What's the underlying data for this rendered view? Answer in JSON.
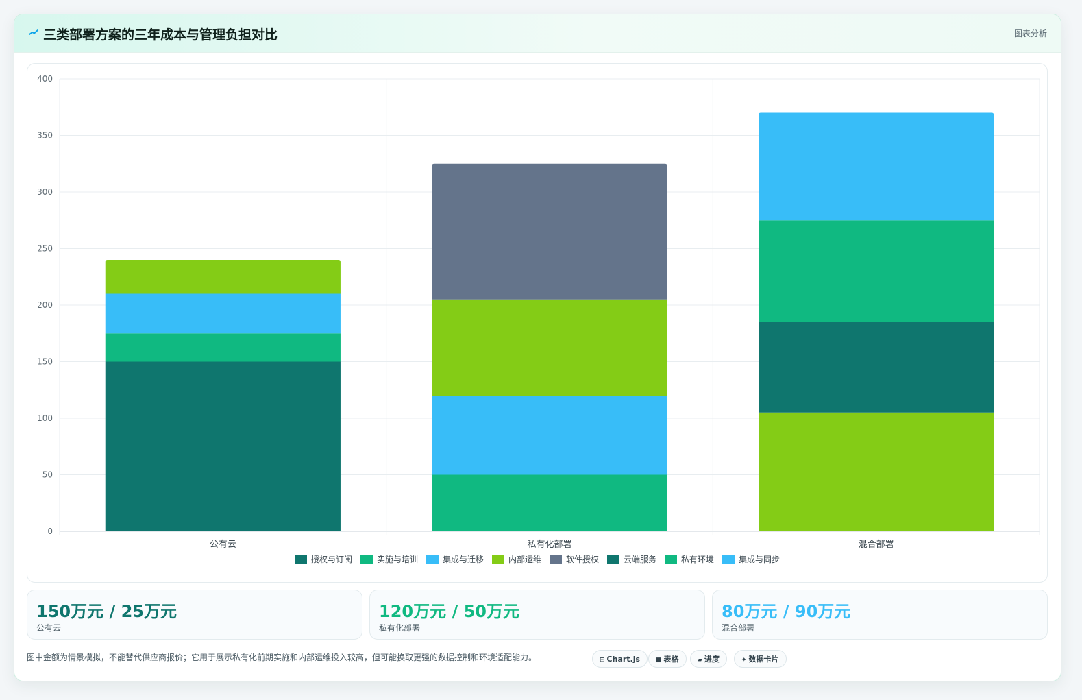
{
  "header": {
    "title": "三类部署方案的三年成本与管理负担对比",
    "icon": "chart-line-icon",
    "meta_label": "图表分析"
  },
  "chart_data": {
    "type": "bar",
    "stacked": true,
    "categories": [
      "公有云",
      "私有化部署",
      "混合部署"
    ],
    "ylim": [
      0,
      400
    ],
    "yticks": [
      0,
      50,
      100,
      150,
      200,
      250,
      300,
      350,
      400
    ],
    "grid": true,
    "legend_position": "bottom",
    "series": [
      {
        "name": "授权与订阅",
        "color": "#0f766e",
        "values": [
          150,
          0,
          0
        ]
      },
      {
        "name": "实施与培训",
        "color": "#10b981",
        "values": [
          25,
          50,
          0
        ]
      },
      {
        "name": "集成与迁移",
        "color": "#38bdf8",
        "values": [
          35,
          70,
          0
        ]
      },
      {
        "name": "内部运维",
        "color": "#84cc16",
        "values": [
          30,
          85,
          105
        ]
      },
      {
        "name": "软件授权",
        "color": "#64748b",
        "values": [
          0,
          120,
          0
        ]
      },
      {
        "name": "云端服务",
        "color": "#0f766e",
        "values": [
          0,
          0,
          80
        ]
      },
      {
        "name": "私有环境",
        "color": "#10b981",
        "values": [
          0,
          0,
          90
        ]
      },
      {
        "name": "集成与同步",
        "color": "#38bdf8",
        "values": [
          0,
          0,
          95
        ]
      }
    ]
  },
  "kpis": [
    {
      "value": "150万元 / 25万元",
      "label": "公有云",
      "color": "#0f766e"
    },
    {
      "value": "120万元 / 50万元",
      "label": "私有化部署",
      "color": "#10b981"
    },
    {
      "value": "80万元 / 90万元",
      "label": "混合部署",
      "color": "#38bdf8"
    }
  ],
  "footnote": "图中金额为情景模拟，不能替代供应商报价；它用于展示私有化前期实施和内部运维投入较高，但可能换取更强的数据控制和环境适配能力。",
  "tags": [
    {
      "label": "Chart.js",
      "icon": "chart-icon",
      "glyph": "⊟"
    },
    {
      "label": "表格",
      "icon": "table-icon",
      "glyph": "■"
    },
    {
      "label": "进度",
      "icon": "progress-icon",
      "glyph": "▰"
    },
    {
      "label": "数据卡片",
      "icon": "sparkle-icon",
      "glyph": "✦"
    }
  ]
}
